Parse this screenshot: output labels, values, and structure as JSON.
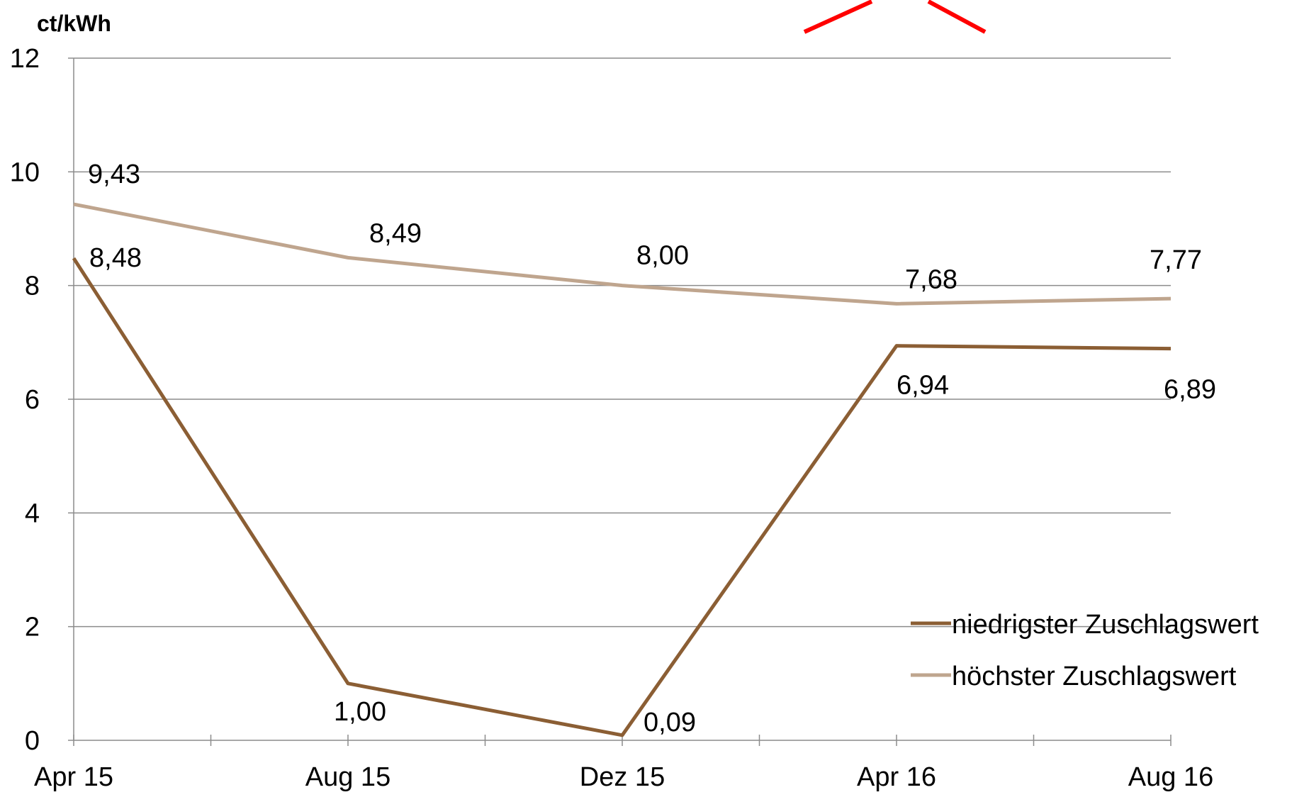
{
  "chart_data": {
    "type": "line",
    "title": "",
    "xlabel": "",
    "ylabel": "ct/kWh",
    "ylim": [
      0,
      12
    ],
    "yticks": [
      0,
      2,
      4,
      6,
      8,
      10,
      12
    ],
    "categories": [
      "Apr 15",
      "Aug 15",
      "Dez 15",
      "Apr 16",
      "Aug 16"
    ],
    "grid": true,
    "legend_position": "bottom-right",
    "series": [
      {
        "name": "niedrigster Zuschlagswert",
        "color": "#8B5E34",
        "values": [
          8.48,
          1.0,
          0.09,
          6.94,
          6.89
        ],
        "labels": [
          "8,48",
          "1,00",
          "0,09",
          "6,94",
          "6,89"
        ]
      },
      {
        "name": "höchster Zuschlagswert",
        "color": "#BFA58E",
        "values": [
          9.43,
          8.49,
          8.0,
          7.68,
          7.77
        ],
        "labels": [
          "9,43",
          "8,49",
          "8,00",
          "7,68",
          "7,77"
        ]
      }
    ],
    "decoration_color": "#FF0000"
  }
}
